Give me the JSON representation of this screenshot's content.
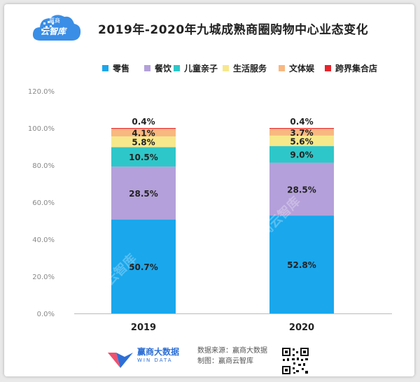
{
  "header": {
    "title": "2019年-2020年九城成熟商圈购物中心业态变化",
    "logo_text": "云智库",
    "logo_sub": "赢商"
  },
  "colors": {
    "零售": "#1aa7ec",
    "餐饮": "#b4a0da",
    "儿童亲子": "#2ec7c9",
    "生活服务": "#f7e88c",
    "文体娱": "#f8b880",
    "跨界集合店": "#e8232b"
  },
  "chart_data": {
    "type": "bar",
    "stacked": true,
    "categories": [
      "2019",
      "2020"
    ],
    "series": [
      {
        "name": "零售",
        "values": [
          50.7,
          52.8
        ],
        "labels": [
          "50.7%",
          "52.8%"
        ]
      },
      {
        "name": "餐饮",
        "values": [
          28.5,
          28.5
        ],
        "labels": [
          "28.5%",
          "28.5%"
        ]
      },
      {
        "name": "儿童亲子",
        "values": [
          10.5,
          9.0
        ],
        "labels": [
          "10.5%",
          "9.0%"
        ]
      },
      {
        "name": "生活服务",
        "values": [
          5.8,
          5.6
        ],
        "labels": [
          "5.8%",
          "5.6%"
        ]
      },
      {
        "name": "文体娱",
        "values": [
          4.1,
          3.7
        ],
        "labels": [
          "4.1%",
          "3.7%"
        ]
      },
      {
        "name": "跨界集合店",
        "values": [
          0.4,
          0.4
        ],
        "labels": [
          "0.4%",
          "0.4%"
        ]
      }
    ],
    "yticks": [
      "0.0%",
      "20.0%",
      "40.0%",
      "60.0%",
      "80.0%",
      "100.0%",
      "120.0%"
    ],
    "ylim": [
      0,
      120
    ],
    "grid": false,
    "legend": "top"
  },
  "footer": {
    "brand": "赢商大数据",
    "brand_sub": "WIN DATA",
    "source": "数据来源：赢商大数据",
    "maker": "制图：赢商云智库"
  },
  "watermark": "赢商云智库"
}
